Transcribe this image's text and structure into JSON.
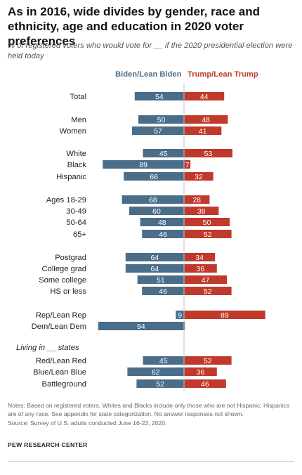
{
  "title": "As in 2016, wide divides by gender, race and ethnicity, age and education in 2020 voter preferences",
  "subtitle": "% of registered voters who would vote for __ if the 2020 presidential election were held today",
  "legend": {
    "biden": "Biden/Lean Biden",
    "trump": "Trump/Lean Trump"
  },
  "colors": {
    "biden": "#4a6d8a",
    "trump": "#c0392b",
    "axis": "#b9c7d4"
  },
  "chart_data": {
    "type": "bar",
    "orientation": "horizontal-diverging",
    "series": [
      {
        "name": "Biden/Lean Biden",
        "values": [
          54,
          50,
          57,
          45,
          89,
          66,
          68,
          60,
          48,
          46,
          64,
          64,
          51,
          46,
          9,
          94,
          45,
          62,
          52
        ]
      },
      {
        "name": "Trump/Lean Trump",
        "values": [
          44,
          48,
          41,
          53,
          7,
          32,
          28,
          38,
          50,
          52,
          34,
          36,
          47,
          52,
          89,
          1,
          52,
          36,
          46
        ]
      }
    ],
    "categories": [
      "Total",
      "Men",
      "Women",
      "White",
      "Black",
      "Hispanic",
      "Ages 18-29",
      "30-49",
      "50-64",
      "65+",
      "Postgrad",
      "College grad",
      "Some college",
      "HS or less",
      "Rep/Lean Rep",
      "Dem/Lean Dem",
      "Red/Lean Red",
      "Blue/Lean Blue",
      "Battleground"
    ],
    "value_labels": {
      "biden": [
        "54",
        "50",
        "57",
        "45",
        "89",
        "66",
        "68",
        "60",
        "48",
        "46",
        "64",
        "64",
        "51",
        "46",
        "9",
        "94",
        "45",
        "62",
        "52"
      ],
      "trump": [
        "44",
        "48",
        "41",
        "53",
        "7",
        "32",
        "28",
        "38",
        "50",
        "52",
        "34",
        "36",
        "47",
        "52",
        "89",
        "",
        "52",
        "36",
        "46"
      ]
    },
    "section_header": "Living in __ states",
    "xlim": [
      0,
      100
    ],
    "legend_position": "top"
  },
  "notes": "Notes: Based on registered voters. Whites and Blacks include only those who are not Hispanic; Hispanics are of any race. See appendix for state categorization. No answer responses not shown.",
  "source": "Source: Survey of U.S. adults conducted June 16-22, 2020.",
  "organization": "PEW RESEARCH CENTER"
}
